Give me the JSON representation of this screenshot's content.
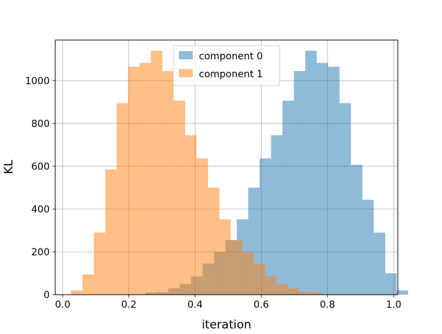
{
  "chart_data": {
    "type": "histogram",
    "xlabel": "iteration",
    "ylabel": "KL",
    "xlim": [
      -0.0,
      1.0
    ],
    "ylim": [
      0,
      1200
    ],
    "xticks": [
      0.0,
      0.2,
      0.4,
      0.6,
      0.8,
      1.0
    ],
    "xtick_labels": [
      "0.0",
      "0.2",
      "0.4",
      "0.6",
      "0.8",
      "1.0"
    ],
    "yticks": [
      0,
      200,
      400,
      600,
      800,
      1000
    ],
    "ytick_labels": [
      "0",
      "200",
      "400",
      "600",
      "800",
      "1000"
    ],
    "grid": true,
    "legend_placement": "upper center",
    "series": [
      {
        "name": "component 0",
        "color": "#1f77b4",
        "alpha": 0.5,
        "bin_start": 0.25,
        "bin_width": 0.0345,
        "counts": [
          10,
          12,
          30,
          50,
          85,
          145,
          200,
          255,
          352,
          500,
          637,
          745,
          907,
          1045,
          1140,
          1083,
          1065,
          895,
          607,
          443,
          290,
          100,
          20
        ]
      },
      {
        "name": "component 1",
        "color": "#ff7f0e",
        "alpha": 0.5,
        "bin_start": 0.025,
        "bin_width": 0.0345,
        "counts": [
          20,
          95,
          290,
          585,
          895,
          1065,
          1083,
          1140,
          1045,
          907,
          745,
          637,
          500,
          352,
          255,
          200,
          145,
          85,
          50,
          30,
          12,
          10
        ]
      }
    ]
  }
}
